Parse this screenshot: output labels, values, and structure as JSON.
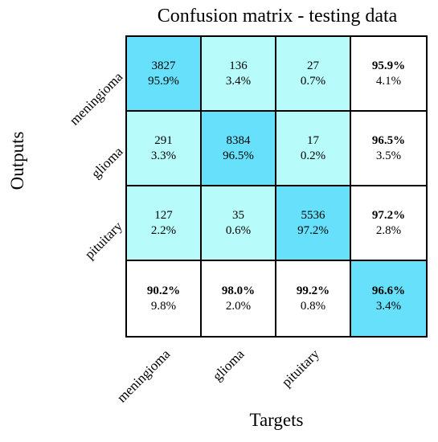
{
  "chart_data": {
    "type": "heatmap",
    "title": "Confusion matrix - testing data",
    "xlabel": "Targets",
    "ylabel": "Outputs",
    "classes": [
      "meningioma",
      "glioma",
      "pituitary"
    ],
    "matrix": [
      [
        {
          "count": "3827",
          "pct": "95.9%"
        },
        {
          "count": "136",
          "pct": "3.4%"
        },
        {
          "count": "27",
          "pct": "0.7%"
        }
      ],
      [
        {
          "count": "291",
          "pct": "3.3%"
        },
        {
          "count": "8384",
          "pct": "96.5%"
        },
        {
          "count": "17",
          "pct": "0.2%"
        }
      ],
      [
        {
          "count": "127",
          "pct": "2.2%"
        },
        {
          "count": "35",
          "pct": "0.6%"
        },
        {
          "count": "5536",
          "pct": "97.2%"
        }
      ]
    ],
    "row_summary": [
      {
        "correct": "95.9%",
        "error": "4.1%"
      },
      {
        "correct": "96.5%",
        "error": "3.5%"
      },
      {
        "correct": "97.2%",
        "error": "2.8%"
      }
    ],
    "col_summary": [
      {
        "correct": "90.2%",
        "error": "9.8%"
      },
      {
        "correct": "98.0%",
        "error": "2.0%"
      },
      {
        "correct": "99.2%",
        "error": "0.8%"
      }
    ],
    "overall": {
      "correct": "96.6%",
      "error": "3.4%"
    },
    "colors": {
      "diagonal": "#66e0fb",
      "off_diagonal": "#b7fbfb",
      "summary": "#ffffff",
      "overall": "#66e0fb"
    }
  }
}
